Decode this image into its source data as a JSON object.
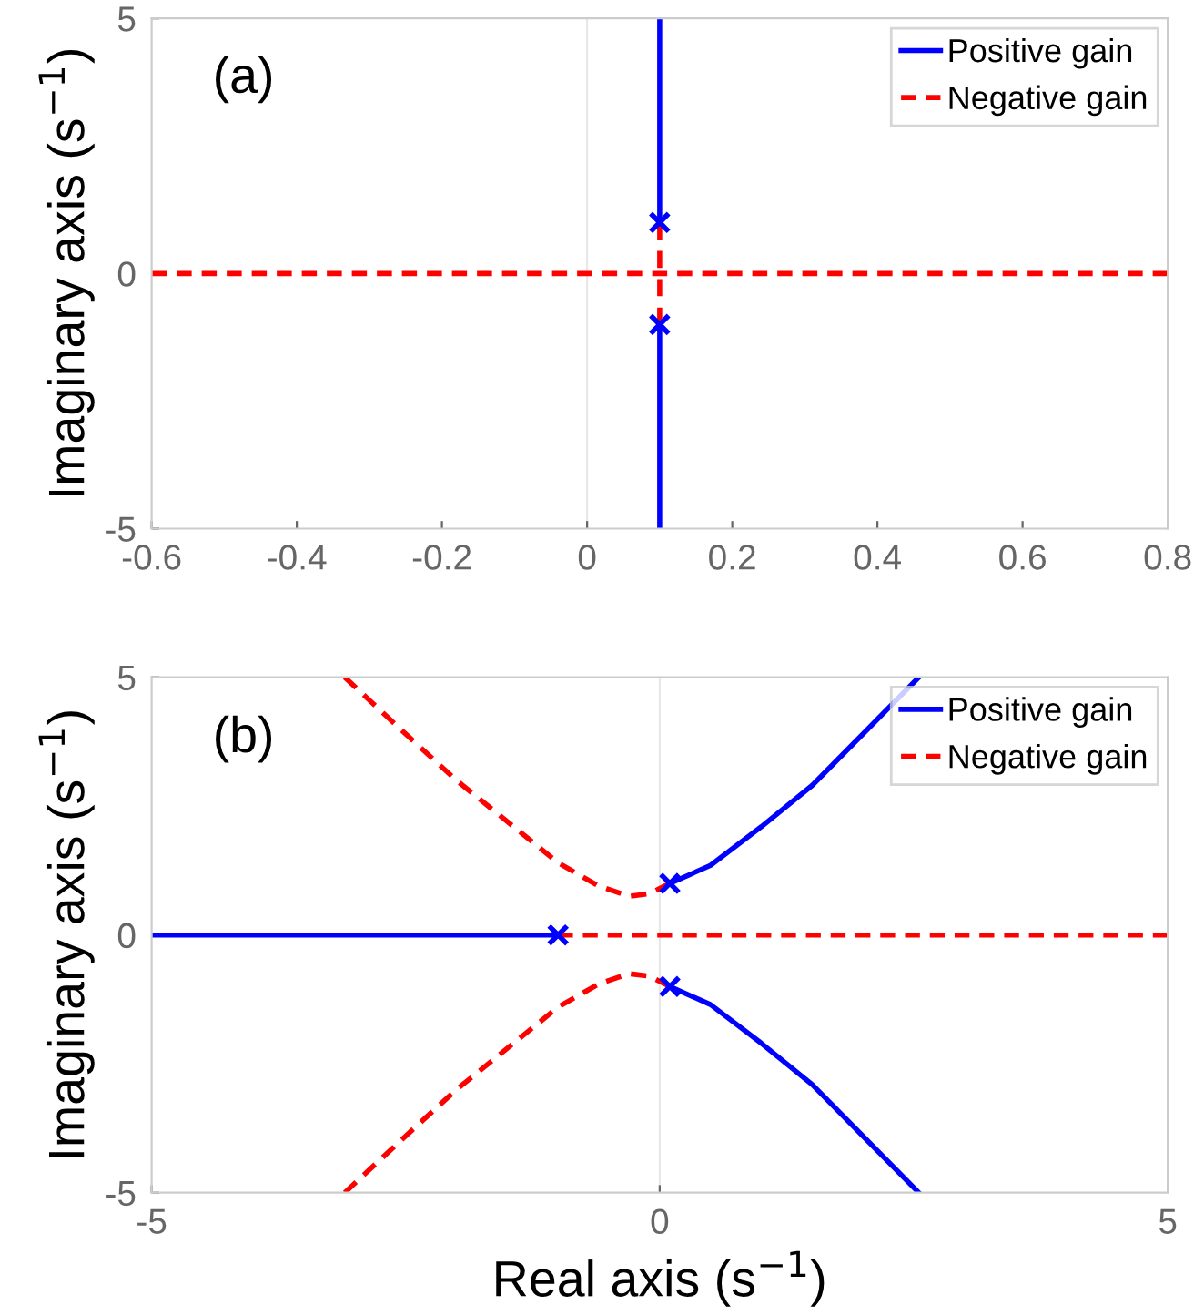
{
  "chart_data": [
    {
      "type": "line",
      "ylabel": "Imaginary axis (s$^{−1}$)",
      "annotations": [
        "(a)"
      ],
      "xlim": [
        -0.6,
        0.8
      ],
      "ylim": [
        -5,
        5
      ],
      "xticks": [
        -0.6,
        -0.4,
        -0.2,
        0,
        0.2,
        0.4,
        0.6,
        0.8
      ],
      "yticks": [
        -5,
        0,
        5
      ],
      "grid": false,
      "legend": "top right",
      "ref_lines": [
        {
          "axis": "x",
          "value": 0,
          "color": "#e8e8e8"
        }
      ],
      "series": [
        {
          "name": "Positive gain",
          "color": "#0000ff",
          "line_style": "solid",
          "x": [
            0.1,
            0.1
          ],
          "values": [
            1,
            5
          ]
        },
        {
          "color": "#0000ff",
          "line_style": "solid",
          "x": [
            0.1,
            0.1
          ],
          "values": [
            -1,
            -5
          ]
        },
        {
          "name": "Negative gain",
          "color": "#ff0000",
          "line_style": "dashed",
          "x": [
            -0.6,
            0.8
          ],
          "values": [
            0,
            0
          ]
        },
        {
          "color": "#ff0000",
          "line_style": "dashed",
          "x": [
            0.1,
            0.1
          ],
          "values": [
            1,
            -1
          ]
        },
        {
          "type": "scatter",
          "color": "#0000ff",
          "marker": "cross",
          "x": [
            0.1,
            0.1
          ],
          "values": [
            1,
            -1
          ]
        }
      ]
    },
    {
      "type": "line",
      "xlabel": "Real axis (s$^{−1}$)",
      "ylabel": "Imaginary axis (s$^{−1}$)",
      "annotations": [
        "(b)"
      ],
      "xlim": [
        -5,
        5
      ],
      "ylim": [
        -5,
        5
      ],
      "xticks": [
        -5,
        0,
        5
      ],
      "yticks": [
        -5,
        0,
        5
      ],
      "grid": false,
      "legend": "top right",
      "ref_lines": [
        {
          "axis": "x",
          "value": 0,
          "color": "#e8e8e8"
        }
      ],
      "series": [
        {
          "name": "Positive gain",
          "color": "#0000ff",
          "line_style": "solid",
          "x": [
            -1,
            -5
          ],
          "values": [
            0,
            0
          ]
        },
        {
          "color": "#0000ff",
          "line_style": "solid",
          "x": [
            0.1,
            0.5,
            1.0,
            1.5,
            2.0,
            2.55
          ],
          "values": [
            1,
            1.35,
            2.1,
            2.9,
            3.9,
            5
          ]
        },
        {
          "color": "#0000ff",
          "line_style": "solid",
          "x": [
            0.1,
            0.5,
            1.0,
            1.5,
            2.0,
            2.55
          ],
          "values": [
            -1,
            -1.35,
            -2.1,
            -2.9,
            -3.9,
            -5
          ]
        },
        {
          "name": "Negative gain",
          "color": "#ff0000",
          "line_style": "dashed",
          "x": [
            -1,
            5
          ],
          "values": [
            0,
            0
          ]
        },
        {
          "color": "#ff0000",
          "line_style": "dashed",
          "x": [
            0.1,
            -0.1,
            -0.3,
            -0.6,
            -1.0,
            -1.5,
            -2.0,
            -2.5,
            -3.1
          ],
          "values": [
            1,
            0.8,
            0.75,
            0.95,
            1.4,
            2.2,
            3.0,
            3.9,
            5
          ]
        },
        {
          "color": "#ff0000",
          "line_style": "dashed",
          "x": [
            0.1,
            -0.1,
            -0.3,
            -0.6,
            -1.0,
            -1.5,
            -2.0,
            -2.5,
            -3.1
          ],
          "values": [
            -1,
            -0.8,
            -0.75,
            -0.95,
            -1.4,
            -2.2,
            -3.0,
            -3.9,
            -5
          ]
        },
        {
          "type": "scatter",
          "color": "#0000ff",
          "marker": "cross",
          "x": [
            0.1,
            0.1,
            -1
          ],
          "values": [
            1,
            -1,
            0
          ]
        }
      ]
    }
  ]
}
